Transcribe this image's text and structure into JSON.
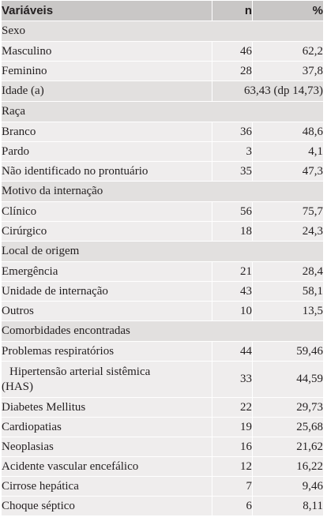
{
  "header": {
    "col_variable": "Variáveis",
    "col_n": "n",
    "col_pct": "%"
  },
  "rows": [
    {
      "type": "section",
      "label": "Sexo"
    },
    {
      "type": "item",
      "label": "Masculino",
      "n": "46",
      "pct": "62,2"
    },
    {
      "type": "item",
      "label": "Feminino",
      "n": "28",
      "pct": "37,8"
    },
    {
      "type": "span",
      "label": "Idade (a)",
      "value": "63,43 (dp 14,73)"
    },
    {
      "type": "section",
      "label": "Raça"
    },
    {
      "type": "item",
      "label": "Branco",
      "n": "36",
      "pct": "48,6"
    },
    {
      "type": "item",
      "label": "Pardo",
      "n": "3",
      "pct": "4,1"
    },
    {
      "type": "item",
      "label": "Não identificado no prontuário",
      "n": "35",
      "pct": "47,3"
    },
    {
      "type": "section",
      "label": "Motivo da internação"
    },
    {
      "type": "item",
      "label": "Clínico",
      "n": "56",
      "pct": "75,7"
    },
    {
      "type": "item",
      "label": "Cirúrgico",
      "n": "18",
      "pct": "24,3"
    },
    {
      "type": "section",
      "label": "Local de origem"
    },
    {
      "type": "item",
      "label": "Emergência",
      "n": "21",
      "pct": "28,4"
    },
    {
      "type": "item",
      "label": "Unidade de internação",
      "n": "43",
      "pct": "58,1"
    },
    {
      "type": "item",
      "label": "Outros",
      "n": "10",
      "pct": "13,5"
    },
    {
      "type": "section",
      "label": "Comorbidades encontradas"
    },
    {
      "type": "item",
      "label": "Problemas respiratórios",
      "n": "44",
      "pct": "59,46"
    },
    {
      "type": "item",
      "label": "Hipertensão arterial sistêmica (HAS)",
      "label_line1": "Hipertensão arterial sistêmica",
      "label_line2": "(HAS)",
      "n": "33",
      "pct": "44,59",
      "tall": true
    },
    {
      "type": "item",
      "label": "Diabetes Mellitus",
      "n": "22",
      "pct": "29,73"
    },
    {
      "type": "item",
      "label": "Cardiopatias",
      "n": "19",
      "pct": "25,68"
    },
    {
      "type": "item",
      "label": "Neoplasias",
      "n": "16",
      "pct": "21,62"
    },
    {
      "type": "item",
      "label": "Acidente vascular encefálico",
      "n": "12",
      "pct": "16,22"
    },
    {
      "type": "item",
      "label": "Cirrose hepática",
      "n": "7",
      "pct": "9,46"
    },
    {
      "type": "item",
      "label": "Choque séptico",
      "n": "6",
      "pct": "8,11"
    }
  ]
}
